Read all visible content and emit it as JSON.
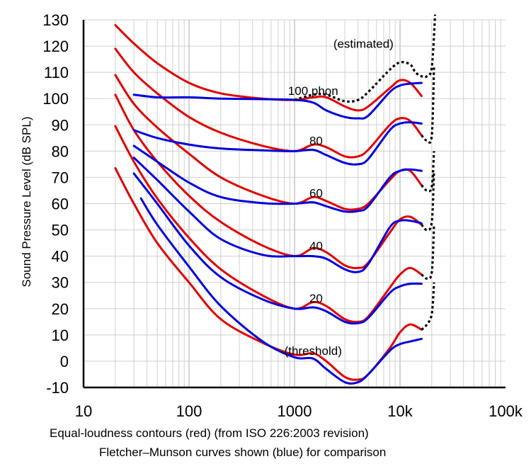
{
  "chart_data": {
    "type": "line",
    "title": "",
    "ylabel": "Sound Pressure Level (dB SPL)",
    "xlabel": "",
    "x_scale": "log",
    "xlim": [
      10,
      100000
    ],
    "ylim": [
      -10,
      130
    ],
    "grid": true,
    "x_ticks": [
      "10",
      "100",
      "1000",
      "10k",
      "100k"
    ],
    "y_ticks": [
      "130",
      "120",
      "110",
      "100",
      "90",
      "80",
      "70",
      "60",
      "50",
      "40",
      "30",
      "20",
      "10",
      "0",
      "-10"
    ],
    "caption_line1": "Equal-loudness contours (red) (from ISO 226:2003 revision)",
    "caption_line2": "Fletcher–Munson curves shown (blue) for comparison",
    "annotations": [
      {
        "text": "(estimated)",
        "x": 4500,
        "y": 121
      },
      {
        "text": "100 phon",
        "x": 1500,
        "y": 103
      },
      {
        "text": "80",
        "x": 1600,
        "y": 84
      },
      {
        "text": "60",
        "x": 1600,
        "y": 64
      },
      {
        "text": "40",
        "x": 1600,
        "y": 44
      },
      {
        "text": "20",
        "x": 1600,
        "y": 24
      },
      {
        "text": "(threshold)",
        "x": 1500,
        "y": 4
      }
    ],
    "series": [
      {
        "color": "#e00000",
        "dashed": false,
        "points": [
          [
            20,
            128
          ],
          [
            30,
            121
          ],
          [
            50,
            113.5
          ],
          [
            100,
            106
          ],
          [
            200,
            102
          ],
          [
            500,
            100
          ],
          [
            1000,
            99.5
          ],
          [
            1500,
            100.5
          ],
          [
            2000,
            100.5
          ],
          [
            3000,
            97
          ],
          [
            4000,
            95.5
          ],
          [
            5000,
            97
          ],
          [
            8000,
            104
          ],
          [
            10000,
            107
          ],
          [
            12500,
            106
          ],
          [
            16000,
            101
          ]
        ]
      },
      {
        "color": "#e00000",
        "dashed": false,
        "points": [
          [
            20,
            119
          ],
          [
            30,
            110
          ],
          [
            50,
            102
          ],
          [
            100,
            93
          ],
          [
            200,
            87
          ],
          [
            500,
            82
          ],
          [
            1000,
            80
          ],
          [
            1500,
            82.5
          ],
          [
            2000,
            81.5
          ],
          [
            3000,
            78
          ],
          [
            4000,
            78
          ],
          [
            5000,
            80.5
          ],
          [
            8000,
            90
          ],
          [
            10000,
            92.5
          ],
          [
            12500,
            91.5
          ],
          [
            16000,
            86
          ]
        ]
      },
      {
        "color": "#e00000",
        "dashed": false,
        "points": [
          [
            20,
            109
          ],
          [
            30,
            98
          ],
          [
            50,
            89
          ],
          [
            100,
            79
          ],
          [
            200,
            70
          ],
          [
            500,
            63
          ],
          [
            1000,
            60
          ],
          [
            1500,
            62.5
          ],
          [
            2000,
            61
          ],
          [
            3000,
            58
          ],
          [
            4000,
            58
          ],
          [
            5000,
            60
          ],
          [
            8000,
            69
          ],
          [
            10000,
            72.5
          ],
          [
            12500,
            72.5
          ],
          [
            16000,
            67
          ]
        ]
      },
      {
        "color": "#e00000",
        "dashed": false,
        "points": [
          [
            20,
            101.5
          ],
          [
            30,
            88
          ],
          [
            50,
            76
          ],
          [
            100,
            63
          ],
          [
            200,
            53
          ],
          [
            500,
            44
          ],
          [
            1000,
            40
          ],
          [
            1500,
            43
          ],
          [
            2000,
            41.5
          ],
          [
            3000,
            36.5
          ],
          [
            4000,
            35.5
          ],
          [
            5000,
            37.5
          ],
          [
            8000,
            49
          ],
          [
            10000,
            54
          ],
          [
            12500,
            55
          ],
          [
            16000,
            52
          ]
        ]
      },
      {
        "color": "#e00000",
        "dashed": false,
        "points": [
          [
            20,
            89.5
          ],
          [
            30,
            76
          ],
          [
            50,
            62
          ],
          [
            100,
            47
          ],
          [
            200,
            35
          ],
          [
            500,
            25
          ],
          [
            1000,
            20
          ],
          [
            1500,
            22.5
          ],
          [
            2000,
            21
          ],
          [
            3000,
            16
          ],
          [
            4000,
            15
          ],
          [
            5000,
            17
          ],
          [
            8000,
            28
          ],
          [
            10000,
            33
          ],
          [
            12500,
            35.5
          ],
          [
            16000,
            33
          ]
        ]
      },
      {
        "color": "#e00000",
        "dashed": false,
        "points": [
          [
            20,
            73.5
          ],
          [
            30,
            60
          ],
          [
            50,
            45
          ],
          [
            100,
            30
          ],
          [
            200,
            16
          ],
          [
            500,
            7
          ],
          [
            1000,
            2.5
          ],
          [
            1500,
            3
          ],
          [
            2000,
            0
          ],
          [
            3000,
            -6
          ],
          [
            4000,
            -7
          ],
          [
            5000,
            -5
          ],
          [
            8000,
            5
          ],
          [
            10000,
            11
          ],
          [
            12500,
            14
          ],
          [
            16000,
            12
          ]
        ]
      },
      {
        "color": "#0000dd",
        "dashed": false,
        "points": [
          [
            30,
            101.5
          ],
          [
            50,
            100.5
          ],
          [
            100,
            100.5
          ],
          [
            200,
            100
          ],
          [
            500,
            99.8
          ],
          [
            1000,
            99.5
          ],
          [
            1500,
            98.5
          ],
          [
            2000,
            95.5
          ],
          [
            3000,
            93
          ],
          [
            4000,
            92.5
          ],
          [
            5000,
            93.5
          ],
          [
            8000,
            102.5
          ],
          [
            10000,
            105
          ],
          [
            12500,
            105.7
          ],
          [
            16000,
            106
          ]
        ]
      },
      {
        "color": "#0000dd",
        "dashed": false,
        "points": [
          [
            30,
            88
          ],
          [
            50,
            85
          ],
          [
            100,
            82.5
          ],
          [
            200,
            81
          ],
          [
            500,
            80.3
          ],
          [
            1000,
            80
          ],
          [
            1500,
            80.5
          ],
          [
            2000,
            78.5
          ],
          [
            3000,
            75.5
          ],
          [
            4000,
            75
          ],
          [
            5000,
            77
          ],
          [
            8000,
            88
          ],
          [
            10000,
            90.5
          ],
          [
            12500,
            91
          ],
          [
            16000,
            90.5
          ]
        ]
      },
      {
        "color": "#0000dd",
        "dashed": false,
        "points": [
          [
            30,
            82
          ],
          [
            50,
            76
          ],
          [
            100,
            68
          ],
          [
            200,
            62.5
          ],
          [
            500,
            60.2
          ],
          [
            1000,
            60
          ],
          [
            1500,
            60.5
          ],
          [
            2000,
            59
          ],
          [
            3000,
            57
          ],
          [
            4000,
            57.2
          ],
          [
            5000,
            59
          ],
          [
            8000,
            70
          ],
          [
            10000,
            72.5
          ],
          [
            12500,
            73
          ],
          [
            16000,
            72.5
          ]
        ]
      },
      {
        "color": "#0000dd",
        "dashed": false,
        "points": [
          [
            30,
            77.5
          ],
          [
            50,
            69
          ],
          [
            100,
            57
          ],
          [
            200,
            46.5
          ],
          [
            500,
            40.5
          ],
          [
            1000,
            40
          ],
          [
            1500,
            40
          ],
          [
            2000,
            39
          ],
          [
            3000,
            35
          ],
          [
            4000,
            34
          ],
          [
            5000,
            37
          ],
          [
            8000,
            51
          ],
          [
            10000,
            53.5
          ],
          [
            12500,
            53.5
          ],
          [
            16000,
            52.5
          ]
        ]
      },
      {
        "color": "#0000dd",
        "dashed": false,
        "points": [
          [
            30,
            71.5
          ],
          [
            50,
            60
          ],
          [
            100,
            44
          ],
          [
            200,
            32
          ],
          [
            500,
            23.5
          ],
          [
            1000,
            20
          ],
          [
            1500,
            20.5
          ],
          [
            2000,
            19
          ],
          [
            3000,
            15
          ],
          [
            4000,
            14.5
          ],
          [
            5000,
            16.5
          ],
          [
            8000,
            26
          ],
          [
            10000,
            28.5
          ],
          [
            12500,
            29.5
          ],
          [
            16000,
            29.5
          ]
        ]
      },
      {
        "color": "#0000dd",
        "dashed": false,
        "points": [
          [
            35,
            62
          ],
          [
            50,
            52
          ],
          [
            100,
            36
          ],
          [
            200,
            21
          ],
          [
            500,
            7.5
          ],
          [
            1000,
            1.5
          ],
          [
            1500,
            1
          ],
          [
            2000,
            -3
          ],
          [
            3000,
            -8
          ],
          [
            4000,
            -8
          ],
          [
            5000,
            -5
          ],
          [
            8000,
            4
          ],
          [
            10000,
            6.5
          ],
          [
            12500,
            7.5
          ],
          [
            16000,
            8.5
          ]
        ]
      },
      {
        "color": "#000000",
        "dashed": true,
        "points": [
          [
            1000,
            99.5
          ],
          [
            1500,
            101.5
          ],
          [
            2000,
            101.5
          ],
          [
            3000,
            99
          ],
          [
            4000,
            99.5
          ],
          [
            5000,
            102.5
          ],
          [
            8000,
            111
          ],
          [
            10000,
            113.8
          ],
          [
            12500,
            113
          ],
          [
            14000,
            110
          ],
          [
            16000,
            108.5
          ],
          [
            18000,
            108.5
          ],
          [
            20000,
            112
          ],
          [
            21500,
            132
          ]
        ]
      },
      {
        "color": "#000000",
        "dashed": true,
        "points": [
          [
            16000,
            86
          ],
          [
            18000,
            84
          ],
          [
            20000,
            86
          ],
          [
            21000,
            112
          ]
        ]
      },
      {
        "color": "#000000",
        "dashed": true,
        "points": [
          [
            16000,
            67
          ],
          [
            18000,
            65
          ],
          [
            20000,
            66.5
          ],
          [
            21000,
            80
          ]
        ]
      },
      {
        "color": "#000000",
        "dashed": true,
        "points": [
          [
            16000,
            52
          ],
          [
            18000,
            50
          ],
          [
            20000,
            53
          ],
          [
            21000,
            72
          ]
        ]
      },
      {
        "color": "#000000",
        "dashed": true,
        "points": [
          [
            16000,
            33
          ],
          [
            18000,
            31.5
          ],
          [
            20000,
            34
          ],
          [
            21000,
            52
          ]
        ]
      },
      {
        "color": "#000000",
        "dashed": true,
        "points": [
          [
            16000,
            12
          ],
          [
            18000,
            14
          ],
          [
            20000,
            18
          ],
          [
            21000,
            30
          ]
        ]
      }
    ]
  }
}
